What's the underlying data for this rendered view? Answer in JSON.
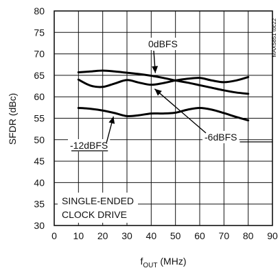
{
  "chart_data": {
    "type": "line",
    "xlabel": {
      "base": "f",
      "sub": "OUT",
      "rest": " (MHz)"
    },
    "ylabel": "SFDR (dBc)",
    "xlim": [
      0,
      90
    ],
    "ylim": [
      30,
      80
    ],
    "x_ticks": [
      0,
      10,
      20,
      30,
      40,
      50,
      60,
      70,
      80,
      90
    ],
    "y_ticks": [
      30,
      35,
      40,
      45,
      50,
      55,
      60,
      65,
      70,
      75,
      80
    ],
    "grid": true,
    "series": [
      {
        "name": "0dBFS",
        "x": [
          10,
          15,
          20,
          25,
          30,
          35,
          40,
          45,
          50,
          55,
          60,
          65,
          70,
          75,
          80
        ],
        "y": [
          65.7,
          65.9,
          66.1,
          65.9,
          65.6,
          65.3,
          64.9,
          64.4,
          63.8,
          63.3,
          62.7,
          62.1,
          61.5,
          61.0,
          60.7
        ]
      },
      {
        "name": "-6dBFS",
        "x": [
          10,
          15,
          20,
          25,
          30,
          35,
          40,
          45,
          50,
          55,
          60,
          65,
          70,
          75,
          80
        ],
        "y": [
          64.0,
          62.6,
          62.3,
          63.1,
          63.9,
          63.3,
          62.8,
          63.2,
          63.8,
          64.2,
          64.4,
          63.8,
          63.4,
          63.8,
          64.6
        ]
      },
      {
        "name": "-12dBFS",
        "x": [
          10,
          15,
          20,
          25,
          30,
          35,
          40,
          45,
          50,
          55,
          60,
          65,
          70,
          75,
          80
        ],
        "y": [
          57.4,
          57.2,
          56.8,
          56.2,
          55.5,
          55.7,
          56.1,
          56.1,
          56.3,
          57.0,
          57.4,
          57.0,
          56.2,
          55.3,
          54.5
        ]
      }
    ],
    "annotations": {
      "note_lines": [
        "SINGLE-ENDED",
        "CLOCK DRIVE"
      ],
      "figure_id": "MAX5851 toc22"
    }
  }
}
